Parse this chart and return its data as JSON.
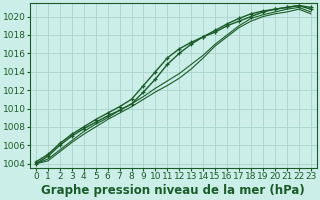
{
  "bg_color": "#cceee8",
  "grid_color": "#aad4cc",
  "line_color": "#1a5c28",
  "title": "Graphe pression niveau de la mer (hPa)",
  "ylim": [
    1003.5,
    1021.5
  ],
  "xlim": [
    -0.5,
    23.5
  ],
  "yticks": [
    1004,
    1006,
    1008,
    1010,
    1012,
    1014,
    1016,
    1018,
    1020
  ],
  "xticks": [
    0,
    1,
    2,
    3,
    4,
    5,
    6,
    7,
    8,
    9,
    10,
    11,
    12,
    13,
    14,
    15,
    16,
    17,
    18,
    19,
    20,
    21,
    22,
    23
  ],
  "series": [
    {
      "y": [
        1004.2,
        1005.0,
        1006.2,
        1007.2,
        1008.0,
        1008.8,
        1009.5,
        1010.2,
        1011.0,
        1012.5,
        1014.0,
        1015.5,
        1016.5,
        1017.2,
        1017.8,
        1018.3,
        1019.0,
        1019.5,
        1020.0,
        1020.5,
        1020.8,
        1021.0,
        1021.2,
        1021.0
      ],
      "marker": true,
      "lw": 1.0
    },
    {
      "y": [
        1004.0,
        1004.8,
        1006.0,
        1007.0,
        1007.8,
        1008.5,
        1009.2,
        1009.8,
        1010.5,
        1011.8,
        1013.2,
        1014.8,
        1016.0,
        1017.0,
        1017.8,
        1018.5,
        1019.2,
        1019.8,
        1020.3,
        1020.6,
        1020.8,
        1021.0,
        1021.2,
        1020.8
      ],
      "marker": true,
      "lw": 1.0
    },
    {
      "y": [
        1004.0,
        1004.5,
        1005.5,
        1006.5,
        1007.5,
        1008.3,
        1009.0,
        1009.8,
        1010.5,
        1011.3,
        1012.2,
        1013.0,
        1013.8,
        1014.8,
        1015.8,
        1017.0,
        1018.0,
        1019.0,
        1019.8,
        1020.2,
        1020.5,
        1020.8,
        1021.0,
        1020.5
      ],
      "marker": false,
      "lw": 0.8
    },
    {
      "y": [
        1004.0,
        1004.3,
        1005.3,
        1006.3,
        1007.2,
        1008.0,
        1008.8,
        1009.5,
        1010.2,
        1011.0,
        1011.8,
        1012.5,
        1013.3,
        1014.3,
        1015.5,
        1016.8,
        1017.8,
        1018.8,
        1019.5,
        1020.0,
        1020.3,
        1020.5,
        1020.8,
        1020.3
      ],
      "marker": false,
      "lw": 0.8
    }
  ],
  "title_fontsize": 8.5,
  "tick_fontsize": 6.5,
  "tick_color": "#1a5c28"
}
